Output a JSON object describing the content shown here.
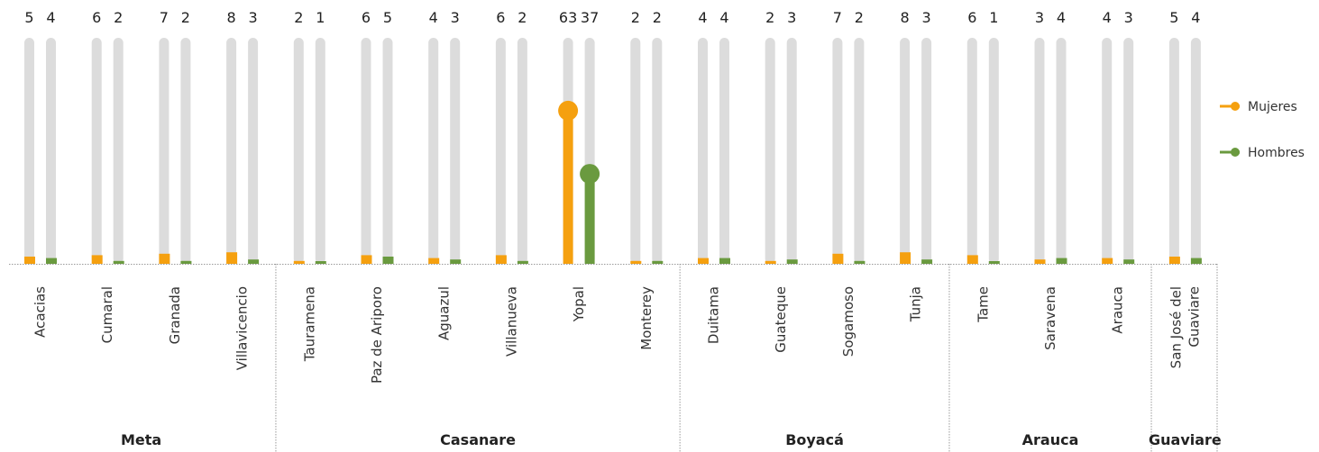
{
  "chart_data": {
    "type": "bar",
    "ylim": [
      0,
      100
    ],
    "colors": {
      "mujeres": "#F5A00F",
      "hombres": "#6A9A3F",
      "track": "#DCDCDC",
      "grid": "#9A9A9A"
    },
    "series": [
      {
        "key": "mujeres",
        "name": "Mujeres",
        "color": "#F5A00F"
      },
      {
        "key": "hombres",
        "name": "Hombres",
        "color": "#6A9A3F"
      }
    ],
    "categories": [
      {
        "city": [
          "Acacias"
        ],
        "dept": "Meta",
        "mujeres": 5,
        "hombres": 4
      },
      {
        "city": [
          "Cumaral"
        ],
        "dept": "Meta",
        "mujeres": 6,
        "hombres": 2
      },
      {
        "city": [
          "Granada"
        ],
        "dept": "Meta",
        "mujeres": 7,
        "hombres": 2
      },
      {
        "city": [
          "Villavicencio"
        ],
        "dept": "Meta",
        "mujeres": 8,
        "hombres": 3
      },
      {
        "city": [
          "Tauramena"
        ],
        "dept": "Casanare",
        "mujeres": 2,
        "hombres": 1
      },
      {
        "city": [
          "Paz de Ariporo"
        ],
        "dept": "Casanare",
        "mujeres": 6,
        "hombres": 5
      },
      {
        "city": [
          "Aguazul"
        ],
        "dept": "Casanare",
        "mujeres": 4,
        "hombres": 3
      },
      {
        "city": [
          "Villanueva"
        ],
        "dept": "Casanare",
        "mujeres": 6,
        "hombres": 2
      },
      {
        "city": [
          "Yopal"
        ],
        "dept": "Casanare",
        "mujeres": 63,
        "hombres": 37
      },
      {
        "city": [
          "Monterey"
        ],
        "dept": "Casanare",
        "mujeres": 2,
        "hombres": 2
      },
      {
        "city": [
          "Duitama"
        ],
        "dept": "Boyacá",
        "mujeres": 4,
        "hombres": 4
      },
      {
        "city": [
          "Guateque"
        ],
        "dept": "Boyacá",
        "mujeres": 2,
        "hombres": 3
      },
      {
        "city": [
          "Sogamoso"
        ],
        "dept": "Boyacá",
        "mujeres": 7,
        "hombres": 2
      },
      {
        "city": [
          "Tunja"
        ],
        "dept": "Boyacá",
        "mujeres": 8,
        "hombres": 3
      },
      {
        "city": [
          "Tame"
        ],
        "dept": "Arauca",
        "mujeres": 6,
        "hombres": 1
      },
      {
        "city": [
          "Saravena"
        ],
        "dept": "Arauca",
        "mujeres": 3,
        "hombres": 4
      },
      {
        "city": [
          "Arauca"
        ],
        "dept": "Arauca",
        "mujeres": 4,
        "hombres": 3
      },
      {
        "city": [
          "San José del",
          "Guaviare"
        ],
        "dept": "Guaviare",
        "mujeres": 5,
        "hombres": 4
      }
    ],
    "departments": [
      "Meta",
      "Casanare",
      "Boyacá",
      "Arauca",
      "Guaviare"
    ],
    "legend": {
      "position": "right",
      "items": [
        {
          "label": "Mujeres",
          "color": "#F5A00F"
        },
        {
          "label": "Hombres",
          "color": "#6A9A3F"
        }
      ]
    }
  }
}
